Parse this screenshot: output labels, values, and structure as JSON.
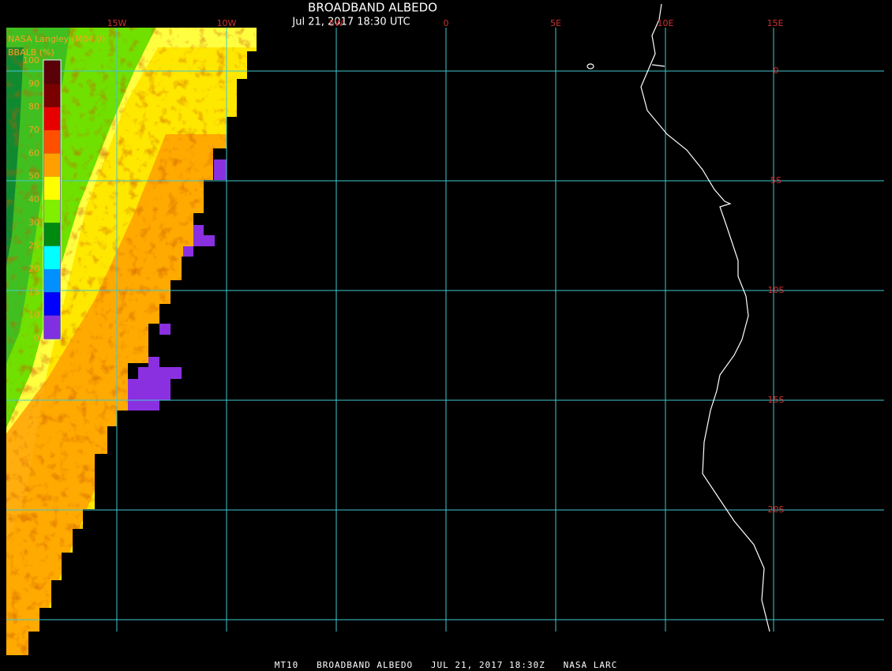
{
  "header": {
    "title": "BROADBAND ALBEDO",
    "subtitle": "Jul 21, 2017 18:30 UTC"
  },
  "credit": "NASA Langley (M04.0)",
  "legend": {
    "title": "BBALB (%)",
    "labels": [
      100,
      90,
      80,
      70,
      60,
      50,
      40,
      30,
      25,
      20,
      15,
      10,
      0
    ],
    "colors": [
      "#5a0008",
      "#7a0000",
      "#e80000",
      "#ff5000",
      "#ffa000",
      "#ffff00",
      "#80f000",
      "#008a10",
      "#00ffff",
      "#0090ff",
      "#0000ff",
      "#8030e0"
    ]
  },
  "lon_labels": [
    "15W",
    "10W",
    "5W",
    "0",
    "5E",
    "10E",
    "15E"
  ],
  "lat_labels": [
    "0",
    "5S",
    "10S",
    "15S",
    "20S"
  ],
  "footer": "MT10   BROADBAND ALBEDO   JUL 21, 2017 18:30Z   NASA LARC"
}
